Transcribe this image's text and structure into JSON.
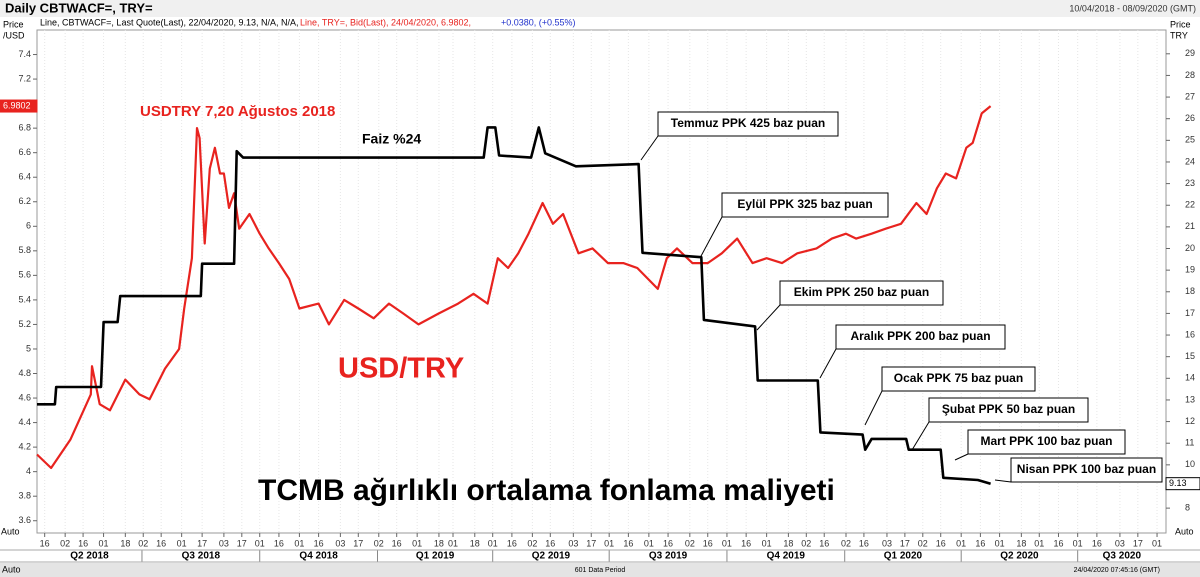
{
  "chart_data": {
    "type": "line",
    "title": "Daily CBTWACF=, TRY=",
    "date_range": "10/04/2018 - 08/09/2020 (GMT)",
    "legend_text": [
      "Line, CBTWACF=, Last Quote(Last), 22/04/2020, 9.13, N/A, N/A,",
      "Line, TRY=, Bid(Last), 24/04/2020, 6.9802,",
      "+0.0380, (+0.55%)"
    ],
    "y_label": [
      "Price",
      "/USD"
    ],
    "y2_label": [
      "Price",
      "TRY"
    ],
    "footer": [
      "Auto",
      "601 Data Period",
      "24/04/2020 07:45:16 (GMT)",
      "Auto"
    ],
    "xlim": [
      "2018-04-10",
      "2020-09-08"
    ],
    "ylim": [
      3.5,
      7.6
    ],
    "yticks": [
      3.6,
      3.8,
      4,
      4.2,
      4.4,
      4.6,
      4.8,
      5,
      5.2,
      5.4,
      5.6,
      5.8,
      6,
      6.2,
      6.4,
      6.6,
      6.8,
      7,
      7.2,
      7.4
    ],
    "y2lim": [
      6.85,
      30.1
    ],
    "y2ticks": [
      8,
      9,
      10,
      11,
      12,
      13,
      14,
      15,
      16,
      17,
      18,
      19,
      20,
      21,
      22,
      23,
      24,
      25,
      26,
      27,
      28,
      29
    ],
    "grid": true,
    "xticks": [
      {
        "value": "2018-04-16",
        "label": "16"
      },
      {
        "value": "2018-05-02",
        "label": "02"
      },
      {
        "value": "2018-05-16",
        "label": "16"
      },
      {
        "value": "2018-06-01",
        "label": "01"
      },
      {
        "value": "2018-06-18",
        "label": "18"
      },
      {
        "value": "2018-07-02",
        "label": "02"
      },
      {
        "value": "2018-07-16",
        "label": "16"
      },
      {
        "value": "2018-08-01",
        "label": "01"
      },
      {
        "value": "2018-08-17",
        "label": "17"
      },
      {
        "value": "2018-09-03",
        "label": "03"
      },
      {
        "value": "2018-09-17",
        "label": "17"
      },
      {
        "value": "2018-10-01",
        "label": "01"
      },
      {
        "value": "2018-10-16",
        "label": "16"
      },
      {
        "value": "2018-11-01",
        "label": "01"
      },
      {
        "value": "2018-11-16",
        "label": "16"
      },
      {
        "value": "2018-12-03",
        "label": "03"
      },
      {
        "value": "2018-12-17",
        "label": "17"
      },
      {
        "value": "2019-01-02",
        "label": "02"
      },
      {
        "value": "2019-01-16",
        "label": "16"
      },
      {
        "value": "2019-02-01",
        "label": "01"
      },
      {
        "value": "2019-02-18",
        "label": "18"
      },
      {
        "value": "2019-03-01",
        "label": "01"
      },
      {
        "value": "2019-03-18",
        "label": "18"
      },
      {
        "value": "2019-04-01",
        "label": "01"
      },
      {
        "value": "2019-04-16",
        "label": "16"
      },
      {
        "value": "2019-05-02",
        "label": "02"
      },
      {
        "value": "2019-05-16",
        "label": "16"
      },
      {
        "value": "2019-06-03",
        "label": "03"
      },
      {
        "value": "2019-06-17",
        "label": "17"
      },
      {
        "value": "2019-07-01",
        "label": "01"
      },
      {
        "value": "2019-07-16",
        "label": "16"
      },
      {
        "value": "2019-08-01",
        "label": "01"
      },
      {
        "value": "2019-08-16",
        "label": "16"
      },
      {
        "value": "2019-09-02",
        "label": "02"
      },
      {
        "value": "2019-09-16",
        "label": "16"
      },
      {
        "value": "2019-10-01",
        "label": "01"
      },
      {
        "value": "2019-10-16",
        "label": "16"
      },
      {
        "value": "2019-11-01",
        "label": "01"
      },
      {
        "value": "2019-11-18",
        "label": "18"
      },
      {
        "value": "2019-12-02",
        "label": "02"
      },
      {
        "value": "2019-12-16",
        "label": "16"
      },
      {
        "value": "2020-01-02",
        "label": "02"
      },
      {
        "value": "2020-01-16",
        "label": "16"
      },
      {
        "value": "2020-02-03",
        "label": "03"
      },
      {
        "value": "2020-02-17",
        "label": "17"
      },
      {
        "value": "2020-03-02",
        "label": "02"
      },
      {
        "value": "2020-03-16",
        "label": "16"
      },
      {
        "value": "2020-04-01",
        "label": "01"
      },
      {
        "value": "2020-04-16",
        "label": "16"
      },
      {
        "value": "2020-05-01",
        "label": "01"
      },
      {
        "value": "2020-05-18",
        "label": "18"
      },
      {
        "value": "2020-06-01",
        "label": "01"
      },
      {
        "value": "2020-06-16",
        "label": "16"
      },
      {
        "value": "2020-07-01",
        "label": "01"
      },
      {
        "value": "2020-07-16",
        "label": "16"
      },
      {
        "value": "2020-08-03",
        "label": "03"
      },
      {
        "value": "2020-08-17",
        "label": "17"
      },
      {
        "value": "2020-09-01",
        "label": "01"
      }
    ],
    "quarters": [
      {
        "value": "2018-04-01",
        "label": "Q2 2018"
      },
      {
        "value": "2018-07-01",
        "label": "Q3 2018"
      },
      {
        "value": "2018-10-01",
        "label": "Q4 2018"
      },
      {
        "value": "2019-01-01",
        "label": "Q1 2019"
      },
      {
        "value": "2019-04-01",
        "label": "Q2 2019"
      },
      {
        "value": "2019-07-01",
        "label": "Q3 2019"
      },
      {
        "value": "2019-10-01",
        "label": "Q4 2019"
      },
      {
        "value": "2020-01-01",
        "label": "Q1 2020"
      },
      {
        "value": "2020-04-01",
        "label": "Q2 2020"
      },
      {
        "value": "2020-07-01",
        "label": "Q3 2020"
      }
    ],
    "series": [
      {
        "name": "TRY=",
        "color": "#e8231f",
        "axis": "y",
        "last_value": 6.9802,
        "x": [
          "2018-04-10",
          "2018-04-21",
          "2018-05-06",
          "2018-05-22",
          "2018-05-23",
          "2018-05-29",
          "2018-06-06",
          "2018-06-18",
          "2018-06-29",
          "2018-07-07",
          "2018-07-19",
          "2018-07-30",
          "2018-08-03",
          "2018-08-09",
          "2018-08-13",
          "2018-08-15",
          "2018-08-19",
          "2018-08-23",
          "2018-08-27",
          "2018-08-31",
          "2018-09-03",
          "2018-09-07",
          "2018-09-11",
          "2018-09-15",
          "2018-09-23",
          "2018-10-01",
          "2018-10-08",
          "2018-10-16",
          "2018-10-24",
          "2018-11-01",
          "2018-11-16",
          "2018-11-24",
          "2018-12-06",
          "2018-12-17",
          "2018-12-29",
          "2019-01-10",
          "2019-01-21",
          "2019-02-02",
          "2019-02-18",
          "2019-03-05",
          "2019-03-17",
          "2019-03-28",
          "2019-04-05",
          "2019-04-13",
          "2019-04-21",
          "2019-04-29",
          "2019-05-10",
          "2019-05-18",
          "2019-05-26",
          "2019-06-07",
          "2019-06-18",
          "2019-06-30",
          "2019-07-12",
          "2019-07-23",
          "2019-08-08",
          "2019-08-15",
          "2019-08-23",
          "2019-09-04",
          "2019-09-16",
          "2019-09-27",
          "2019-10-09",
          "2019-10-21",
          "2019-11-01",
          "2019-11-13",
          "2019-11-25",
          "2019-12-10",
          "2019-12-22",
          "2020-01-02",
          "2020-01-10",
          "2020-01-22",
          "2020-02-02",
          "2020-02-14",
          "2020-02-26",
          "2020-03-05",
          "2020-03-13",
          "2020-03-20",
          "2020-03-28",
          "2020-04-05",
          "2020-04-10",
          "2020-04-17",
          "2020-04-24"
        ],
        "values": [
          4.14,
          4.03,
          4.26,
          4.63,
          4.86,
          4.55,
          4.5,
          4.75,
          4.63,
          4.59,
          4.84,
          5.0,
          5.33,
          5.74,
          6.8,
          6.72,
          5.86,
          6.47,
          6.64,
          6.43,
          6.43,
          6.15,
          6.27,
          5.98,
          6.1,
          5.94,
          5.82,
          5.7,
          5.57,
          5.33,
          5.37,
          5.2,
          5.4,
          5.33,
          5.25,
          5.37,
          5.29,
          5.2,
          5.29,
          5.37,
          5.45,
          5.37,
          5.74,
          5.66,
          5.78,
          5.94,
          6.19,
          6.02,
          6.1,
          5.78,
          5.82,
          5.7,
          5.7,
          5.66,
          5.49,
          5.74,
          5.82,
          5.7,
          5.7,
          5.78,
          5.9,
          5.7,
          5.74,
          5.7,
          5.78,
          5.82,
          5.9,
          5.94,
          5.9,
          5.94,
          5.98,
          6.02,
          6.19,
          6.1,
          6.31,
          6.43,
          6.39,
          6.64,
          6.68,
          6.92,
          6.98
        ]
      },
      {
        "name": "CBTWACF=",
        "color": "#000000",
        "axis": "y2",
        "last_value": 9.13,
        "x": [
          "2018-04-10",
          "2018-04-24",
          "2018-04-25",
          "2018-05-30",
          "2018-06-01",
          "2018-06-12",
          "2018-06-14",
          "2018-08-16",
          "2018-08-17",
          "2018-09-11",
          "2018-09-13",
          "2018-09-18",
          "2019-03-25",
          "2019-03-28",
          "2019-04-03",
          "2019-04-06",
          "2019-05-01",
          "2019-05-07",
          "2019-05-12",
          "2019-06-05",
          "2019-07-24",
          "2019-07-27",
          "2019-09-11",
          "2019-09-13",
          "2019-10-23",
          "2019-10-25",
          "2019-12-11",
          "2019-12-13",
          "2020-01-15",
          "2020-01-17",
          "2020-01-22",
          "2020-02-18",
          "2020-02-20",
          "2020-03-16",
          "2020-03-18",
          "2020-04-14",
          "2020-04-24"
        ],
        "values": [
          12.8,
          12.8,
          13.6,
          13.6,
          16.6,
          16.6,
          17.8,
          17.8,
          19.3,
          19.3,
          24.5,
          24.2,
          24.2,
          25.6,
          25.6,
          24.3,
          24.2,
          25.6,
          24.4,
          23.8,
          23.9,
          19.8,
          19.6,
          16.7,
          16.4,
          13.9,
          13.9,
          11.5,
          11.4,
          10.7,
          11.2,
          11.2,
          10.7,
          10.7,
          9.4,
          9.3,
          9.13
        ]
      }
    ],
    "annotations": [
      "USDTRY 7,20 Ağustos 2018",
      "Faiz %24",
      "USD/TRY",
      "TCMB ağırlıklı ortalama fonlama maliyeti"
    ],
    "callouts": [
      "Temmuz PPK 425 baz puan",
      "Eylül PPK 325 baz puan",
      "Ekim PPK 250 baz puan",
      "Aralık PPK 200 baz puan",
      "Ocak PPK 75 baz puan",
      "Şubat PPK 50 baz puan",
      "Mart PPK 100 baz puan",
      "Nisan PPK 100 baz puan"
    ]
  }
}
